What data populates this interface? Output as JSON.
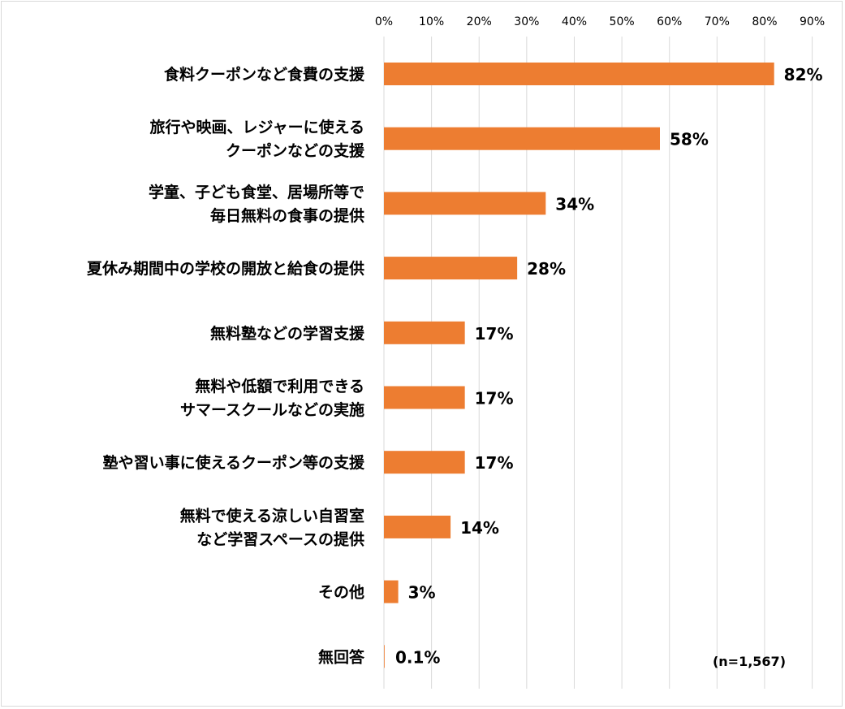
{
  "chart_data": {
    "type": "bar",
    "orientation": "horizontal",
    "categories": [
      [
        "食料クーポンなど食費の支援"
      ],
      [
        "旅行や映画、レジャーに使える",
        "クーポンなどの支援"
      ],
      [
        "学童、子ども食堂、居場所等で",
        "毎日無料の食事の提供"
      ],
      [
        "夏休み期間中の学校の開放と給食の提供"
      ],
      [
        "無料塾などの学習支援"
      ],
      [
        "無料や低額で利用できる",
        "サマースクールなどの実施"
      ],
      [
        "塾や習い事に使えるクーポン等の支援"
      ],
      [
        "無料で使える涼しい自習室",
        "など学習スペースの提供"
      ],
      [
        "その他"
      ],
      [
        "無回答"
      ]
    ],
    "values": [
      82,
      58,
      34,
      28,
      17,
      17,
      17,
      14,
      3,
      0.1
    ],
    "value_labels": [
      "82%",
      "58%",
      "34%",
      "28%",
      "17%",
      "17%",
      "17%",
      "14%",
      "3%",
      "0.1%"
    ],
    "xlim": [
      0,
      90
    ],
    "ticks": [
      0,
      10,
      20,
      30,
      40,
      50,
      60,
      70,
      80,
      90
    ],
    "tick_labels": [
      "0%",
      "10%",
      "20%",
      "30%",
      "40%",
      "50%",
      "60%",
      "70%",
      "80%",
      "90%"
    ],
    "axis_position": "top",
    "grid": true,
    "bar_color": "#ed7d31",
    "grid_color": "#d9d9d9",
    "note": "(n=1,567)"
  }
}
